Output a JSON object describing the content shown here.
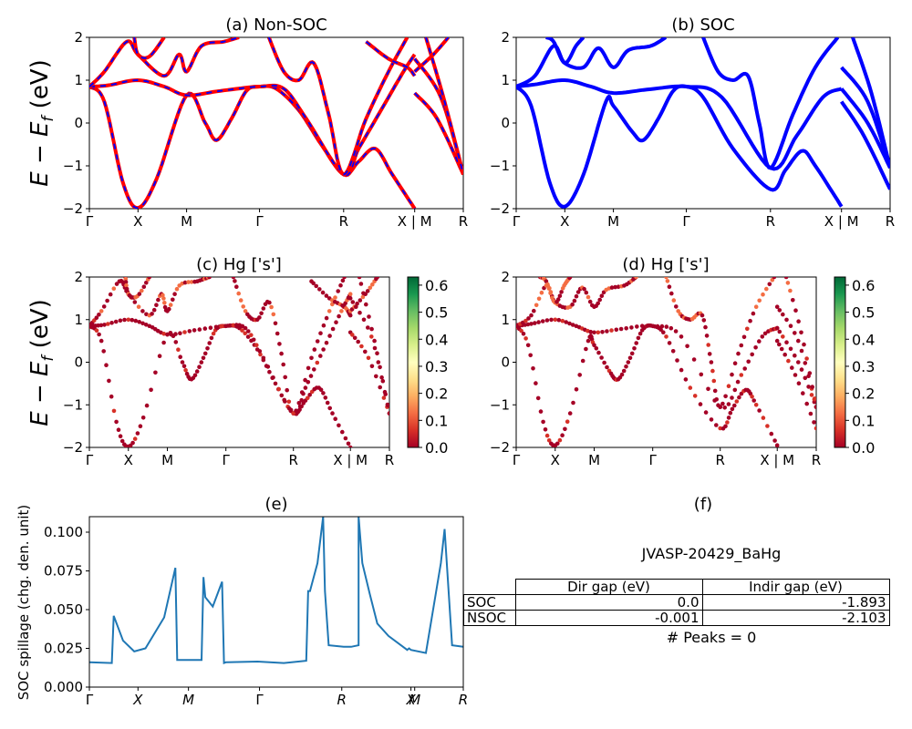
{
  "colors": {
    "nonsoc_red": "#ff0000",
    "nonsoc_blue": "#0000ff",
    "soc_blue": "#0000ff",
    "spill_line": "#1f77b4",
    "colormap": [
      "#a50026",
      "#d73027",
      "#f46d43",
      "#fdae61",
      "#fee08b",
      "#ffffbf",
      "#d9ef8b",
      "#a6d96a",
      "#66bd63",
      "#1a9850",
      "#006837"
    ]
  },
  "band_panels": {
    "a_title": "(a) Non-SOC",
    "b_title": "(b) SOC",
    "c_title": "(c)  Hg ['s']",
    "d_title": "(d) Hg ['s']",
    "ylabel": "E − E_f (eV)",
    "ylim": [
      -2,
      2
    ],
    "yticks": [
      "−2",
      "−1",
      "0",
      "1",
      "2"
    ],
    "kpath": [
      "Γ",
      "X",
      "M",
      "Γ",
      "R",
      "X | M",
      "R"
    ]
  },
  "colorbar": {
    "ticks": [
      "0.0",
      "0.1",
      "0.2",
      "0.3",
      "0.4",
      "0.5",
      "0.6"
    ],
    "range": [
      0,
      0.63
    ]
  },
  "spillage": {
    "title": "(e)",
    "ylabel": "SOC spillage (chg. den. unit)",
    "yticks": [
      "0.000",
      "0.025",
      "0.050",
      "0.075",
      "0.100"
    ],
    "ylim": [
      0,
      0.11
    ],
    "kpath": [
      "Γ",
      "X",
      "M",
      "Γ",
      "R",
      "X",
      "M",
      "R"
    ]
  },
  "table_panel": {
    "title": "(f)",
    "material": "JVASP-20429_BaHg",
    "col_headers": [
      "Dir gap (eV)",
      "Indir gap (eV)"
    ],
    "rows": [
      {
        "label": "SOC",
        "dir": "0.0",
        "indir": "-1.893"
      },
      {
        "label": "NSOC",
        "dir": "-0.001",
        "indir": "-2.103"
      }
    ],
    "peaks": "# Peaks = 0"
  },
  "chart_data": [
    {
      "type": "line",
      "title": "(a) Non-SOC",
      "ylabel": "E − E_f (eV)",
      "ylim": [
        -2,
        2
      ],
      "xtick_labels": [
        "Γ",
        "X",
        "M",
        "Γ",
        "R",
        "X | M",
        "R"
      ],
      "note_series": "red and blue dashed lines overlap",
      "bands_sampled_at_ticks": [
        [
          0.85,
          -2.0,
          0.65,
          0.85,
          -1.2,
          -2.0,
          -1.2
        ],
        [
          0.85,
          1.0,
          0.65,
          0.85,
          -1.2,
          0.7,
          -1.2
        ],
        [
          0.85,
          1.6,
          1.2,
          0.85,
          1.4,
          1.2,
          1.0
        ]
      ]
    },
    {
      "type": "line",
      "title": "(b) SOC",
      "ylabel": "",
      "ylim": [
        -2,
        2
      ],
      "xtick_labels": [
        "Γ",
        "X",
        "M",
        "Γ",
        "R",
        "X | M",
        "R"
      ],
      "bands_sampled_at_ticks": [
        [
          0.85,
          -1.95,
          0.5,
          0.85,
          -1.55,
          -1.95,
          -1.55
        ],
        [
          0.85,
          1.0,
          0.7,
          0.85,
          -1.05,
          0.5,
          -1.05
        ],
        [
          0.85,
          1.35,
          1.3,
          0.85,
          -1.05,
          0.8,
          -1.05
        ]
      ]
    },
    {
      "type": "scatter",
      "title": "(c)  Hg ['s']",
      "ylim": [
        -2,
        2
      ],
      "colorbar_range": [
        0,
        0.63
      ],
      "xtick_labels": [
        "Γ",
        "X",
        "M",
        "Γ",
        "R",
        "X | M",
        "R"
      ]
    },
    {
      "type": "scatter",
      "title": "(d) Hg ['s']",
      "ylim": [
        -2,
        2
      ],
      "colorbar_range": [
        0,
        0.63
      ],
      "xtick_labels": [
        "Γ",
        "X",
        "M",
        "Γ",
        "R",
        "X | M",
        "R"
      ]
    },
    {
      "type": "line",
      "title": "(e)",
      "ylabel": "SOC spillage (chg. den. unit)",
      "ylim": [
        0,
        0.11
      ],
      "xtick_labels": [
        "Γ",
        "X",
        "M",
        "Γ",
        "R",
        "X",
        "M",
        "R"
      ],
      "x": [
        0,
        0.06,
        0.065,
        0.09,
        0.12,
        0.15,
        0.2,
        0.23,
        0.235,
        0.24,
        0.3,
        0.305,
        0.31,
        0.33,
        0.355,
        0.36,
        0.365,
        0.45,
        0.52,
        0.58,
        0.585,
        0.59,
        0.61,
        0.625,
        0.63,
        0.64,
        0.68,
        0.7,
        0.72,
        0.72,
        0.73,
        0.75,
        0.77,
        0.8,
        0.85,
        0.855,
        0.86,
        0.9,
        0.94,
        0.95,
        0.97,
        1.0
      ],
      "y": [
        0.016,
        0.0155,
        0.046,
        0.03,
        0.023,
        0.025,
        0.045,
        0.077,
        0.0175,
        0.0175,
        0.0175,
        0.071,
        0.058,
        0.052,
        0.068,
        0.0155,
        0.016,
        0.0165,
        0.0155,
        0.017,
        0.062,
        0.062,
        0.08,
        0.11,
        0.062,
        0.027,
        0.026,
        0.026,
        0.027,
        0.11,
        0.08,
        0.06,
        0.041,
        0.033,
        0.024,
        0.025,
        0.024,
        0.022,
        0.08,
        0.102,
        0.027,
        0.026
      ]
    }
  ]
}
